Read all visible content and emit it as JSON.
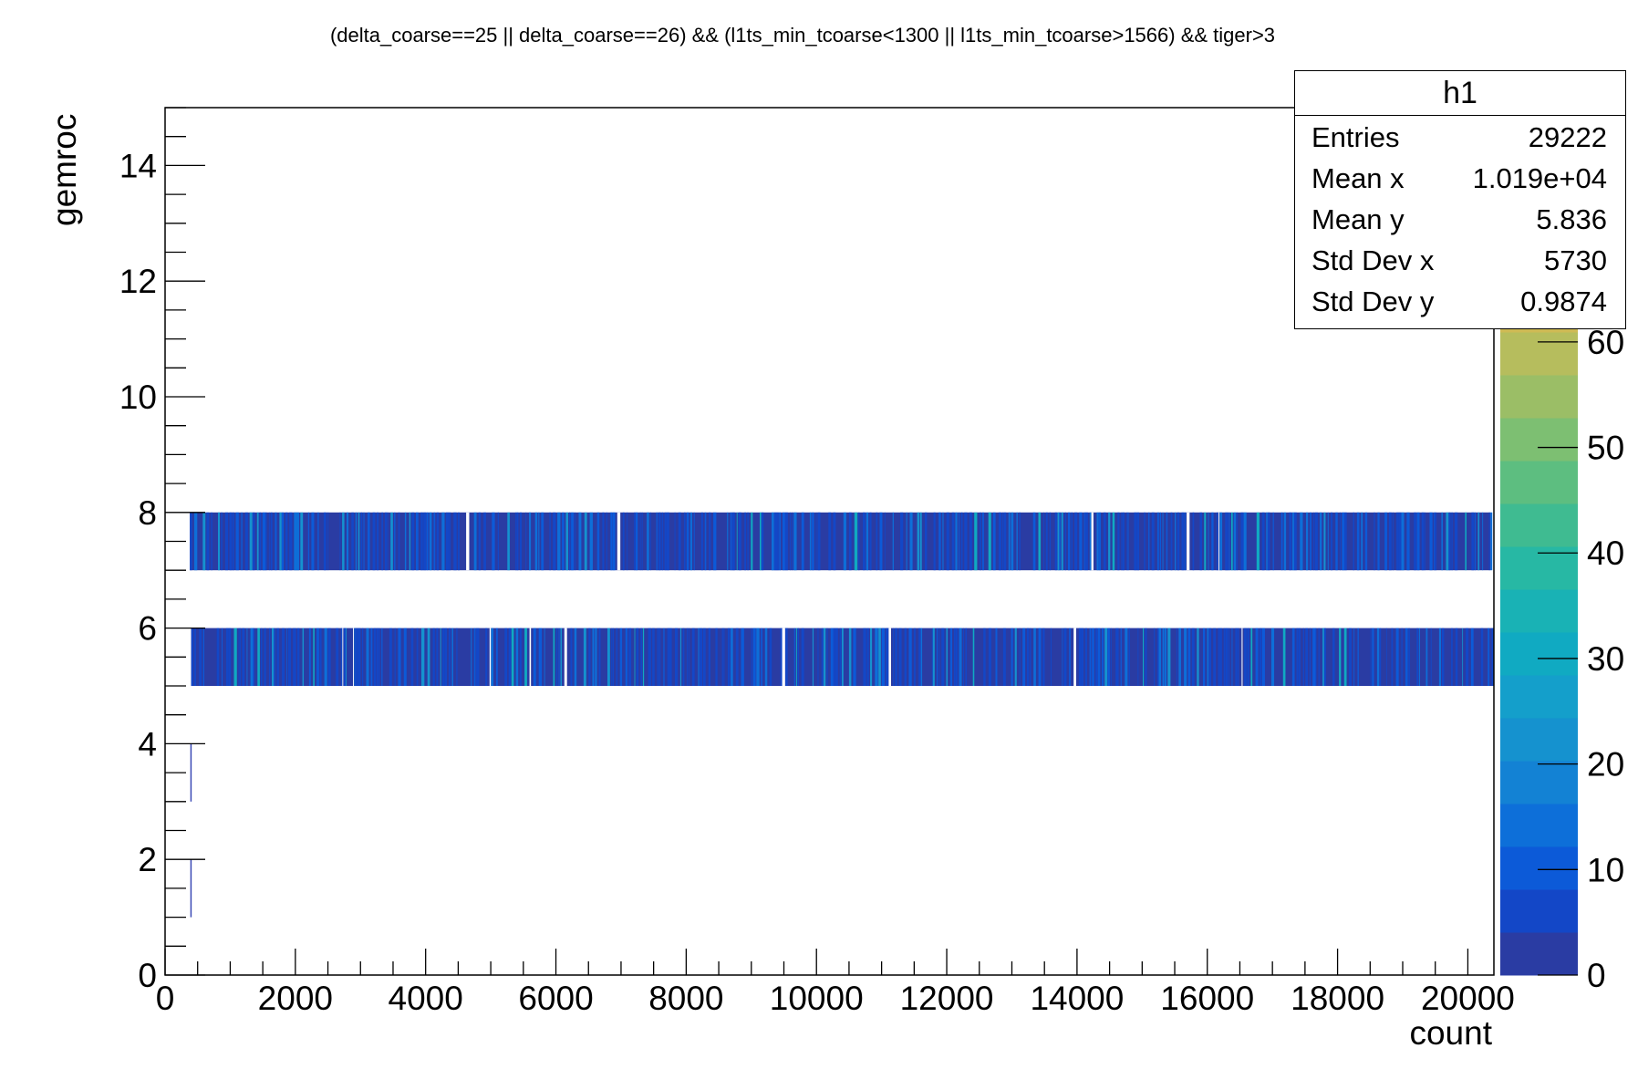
{
  "chart_data": {
    "type": "heatmap",
    "title": "(delta_coarse==25 || delta_coarse==26) && (l1ts_min_tcoarse<1300 || l1ts_min_tcoarse>1566) && tiger>3",
    "xlabel": "count",
    "ylabel": "gemroc",
    "xlim": [
      0,
      20400
    ],
    "ylim": [
      0,
      15
    ],
    "x_ticks": [
      "0",
      "2000",
      "4000",
      "6000",
      "8000",
      "10000",
      "12000",
      "14000",
      "16000",
      "18000",
      "20000"
    ],
    "y_ticks": [
      "0",
      "2",
      "4",
      "6",
      "8",
      "10",
      "12",
      "14"
    ],
    "bands": [
      {
        "gemroc": [
          7,
          8
        ],
        "x_range": [
          380,
          20350
        ],
        "fill_level": 0.12
      },
      {
        "gemroc": [
          5,
          6
        ],
        "x_range": [
          400,
          20400
        ],
        "fill_level": 0.12
      },
      {
        "gemroc": [
          3,
          4
        ],
        "x_range": [
          370,
          400
        ],
        "fill_level": 0.02
      },
      {
        "gemroc": [
          1,
          2
        ],
        "x_range": [
          370,
          400
        ],
        "fill_level": 0.02
      }
    ],
    "colorbar": {
      "min": 0,
      "max": 65,
      "ticks": [
        "0",
        "10",
        "20",
        "30",
        "40",
        "50",
        "60"
      ],
      "colors": [
        "#2a3ca3",
        "#1347c7",
        "#0c5ad8",
        "#0d6fd9",
        "#1382d4",
        "#1592cf",
        "#149fcb",
        "#10aac2",
        "#19b2b5",
        "#27b8a4",
        "#3fbb91",
        "#5dbe80",
        "#7dbf72",
        "#9bbe66",
        "#b6bd5d",
        "#cfba54"
      ]
    },
    "stats": {
      "name": "h1",
      "rows": [
        {
          "label": "Entries",
          "value": "29222"
        },
        {
          "label": "Mean x",
          "value": "1.019e+04"
        },
        {
          "label": "Mean y",
          "value": "5.836"
        },
        {
          "label": "Std Dev x",
          "value": "5730"
        },
        {
          "label": "Std Dev y",
          "value": "0.9874"
        }
      ]
    }
  }
}
